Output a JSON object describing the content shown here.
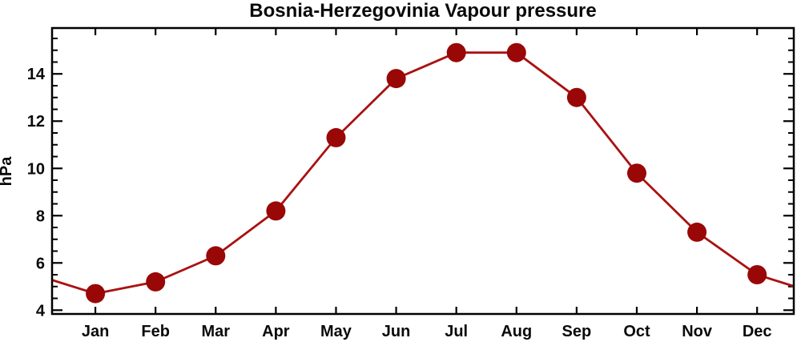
{
  "title": "Bosnia-Herzegovinia Vapour pressure",
  "chart_data": {
    "type": "line",
    "title": "Bosnia-Herzegovinia Vapour pressure",
    "xlabel": "",
    "ylabel": "hPa",
    "categories": [
      "Jan",
      "Feb",
      "Mar",
      "Apr",
      "May",
      "Jun",
      "Jul",
      "Aug",
      "Sep",
      "Oct",
      "Nov",
      "Dec"
    ],
    "values": [
      4.7,
      5.2,
      6.3,
      8.2,
      11.3,
      13.8,
      14.9,
      14.9,
      13.0,
      9.8,
      7.3,
      5.5
    ],
    "series_name": "Vapour pressure",
    "unit": "hPa",
    "ylim": [
      3.84,
      15.94
    ],
    "xlim_month_index": [
      -0.72,
      11.61
    ],
    "y_major_ticks": [
      4,
      6,
      8,
      10,
      12,
      14
    ],
    "y_minor_step": 0.5,
    "grid": "off",
    "legend": "none",
    "marker_shape": "circle",
    "line_wraps_past_side_edges": true,
    "colors": {
      "line": "#aa1111",
      "marker": "#990707",
      "axis": "#000000",
      "text": "#0a0a0a",
      "background": "#ffffff"
    }
  }
}
